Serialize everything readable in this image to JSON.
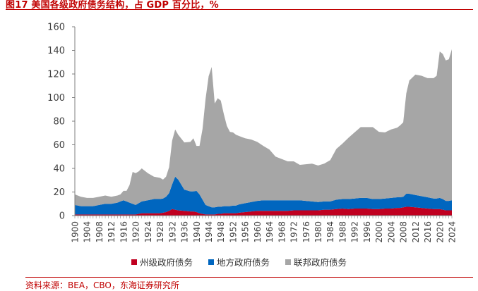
{
  "figure": {
    "title": "图17 美国各级政府债务结构，占 GDP 百分比，%",
    "source": "资料来源：BEA，CBO，东海证券研究所"
  },
  "chart_data": {
    "type": "area",
    "stacked": true,
    "title": "",
    "xlabel": "",
    "ylabel": "",
    "ylim": [
      0,
      160
    ],
    "yticks": [
      0,
      20,
      40,
      60,
      80,
      100,
      120,
      140,
      160
    ],
    "xlim": [
      1900,
      2024
    ],
    "xticks": [
      "1900",
      "1904",
      "1908",
      "1912",
      "1916",
      "1920",
      "1924",
      "1928",
      "1932",
      "1936",
      "1940",
      "1944",
      "1948",
      "1952",
      "1956",
      "1960",
      "1964",
      "1968",
      "1972",
      "1976",
      "1980",
      "1984",
      "1988",
      "1992",
      "1996",
      "2000",
      "2004",
      "2008",
      "2012",
      "2016",
      "2020",
      "2024"
    ],
    "legend_position": "bottom",
    "grid": false,
    "x": [
      1900,
      1902,
      1904,
      1906,
      1908,
      1910,
      1912,
      1914,
      1915,
      1916,
      1917,
      1918,
      1919,
      1920,
      1921,
      1922,
      1924,
      1926,
      1928,
      1929,
      1930,
      1931,
      1932,
      1933,
      1934,
      1936,
      1938,
      1939,
      1940,
      1941,
      1942,
      1943,
      1944,
      1945,
      1946,
      1947,
      1948,
      1949,
      1950,
      1951,
      1952,
      1953,
      1954,
      1956,
      1958,
      1960,
      1962,
      1964,
      1966,
      1968,
      1970,
      1972,
      1974,
      1976,
      1978,
      1980,
      1982,
      1984,
      1986,
      1988,
      1990,
      1992,
      1994,
      1996,
      1998,
      2000,
      2002,
      2004,
      2006,
      2007,
      2008,
      2009,
      2010,
      2012,
      2014,
      2016,
      2018,
      2019,
      2020,
      2021,
      2022,
      2023,
      2024
    ],
    "series": [
      {
        "name": "州级政府债务",
        "color": "#c00020",
        "values": [
          1,
          1,
          1,
          1,
          1,
          1,
          1,
          1,
          1,
          1,
          1,
          1,
          1,
          1,
          1.5,
          2,
          2,
          2,
          2,
          2.5,
          3,
          4,
          5.5,
          5,
          4.5,
          4,
          3.5,
          3.5,
          3,
          2,
          1.5,
          1,
          1,
          1,
          1,
          1.5,
          1.5,
          2,
          2,
          2,
          2,
          2,
          2.5,
          3,
          3.5,
          4,
          4,
          4,
          4,
          4,
          4,
          4.5,
          4.5,
          4.5,
          4.5,
          4.5,
          5,
          5,
          5.5,
          6,
          5.5,
          6,
          6,
          6,
          5.5,
          5.5,
          6,
          6,
          6.5,
          6.5,
          7,
          7.5,
          7.5,
          7,
          6.5,
          6,
          5.5,
          5.5,
          5.5,
          5,
          4.5,
          4.5,
          4.5
        ]
      },
      {
        "name": "地方政府债务",
        "color": "#0066bf",
        "values": [
          8,
          7,
          7,
          7,
          8,
          9,
          9,
          10,
          11,
          12,
          11,
          10,
          9,
          8,
          9,
          10,
          11,
          12,
          12,
          12,
          13,
          15,
          21,
          28,
          26,
          18,
          17,
          17,
          18,
          16,
          12,
          8,
          7,
          6,
          6,
          6,
          6,
          6,
          6,
          6,
          6.5,
          6.5,
          7,
          7.5,
          8,
          8.5,
          9,
          9,
          9,
          9,
          9,
          8.5,
          8.5,
          8,
          7.5,
          7,
          7,
          7,
          8,
          8,
          8.5,
          8.5,
          9,
          9,
          8.5,
          8.5,
          8.5,
          9,
          9,
          9,
          9,
          11,
          11,
          10.5,
          10,
          9.5,
          9,
          9,
          9.5,
          9,
          8,
          8,
          8.5
        ]
      },
      {
        "name": "联邦政府债务",
        "color": "#a6a6a6",
        "values": [
          9,
          8,
          7,
          7,
          7,
          7,
          6,
          6,
          6,
          8,
          9,
          15,
          27,
          27,
          27,
          28,
          23,
          19,
          18,
          16,
          17,
          22,
          37,
          40,
          38,
          40,
          42,
          45,
          38,
          41,
          60,
          90,
          110,
          119,
          88,
          92,
          90,
          78,
          68,
          63,
          62,
          60,
          58,
          55,
          53,
          50,
          46,
          43,
          37,
          35,
          33,
          33,
          30,
          31,
          32,
          31,
          32,
          35,
          43,
          47,
          52,
          56,
          60,
          60,
          61,
          57,
          56,
          58,
          59,
          61,
          63,
          85,
          96,
          102,
          102,
          101,
          102,
          104,
          124,
          123,
          119,
          120,
          128
        ]
      }
    ]
  }
}
